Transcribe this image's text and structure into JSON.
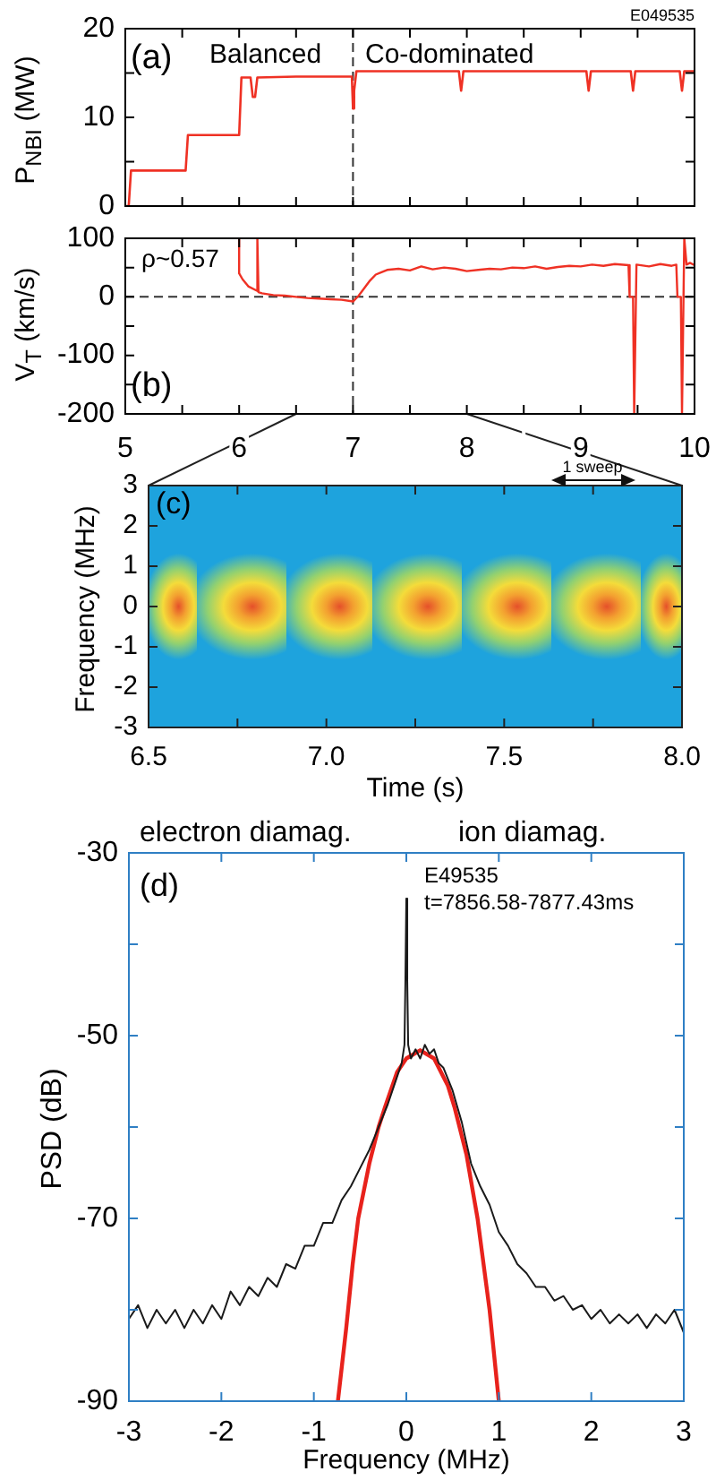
{
  "chart_data": [
    {
      "type": "line",
      "ylabel": "P$_{NBI}$ (MW)",
      "annotations": [
        "E049535",
        "(a)",
        "Balanced",
        "Co-dominated"
      ],
      "xlim": [
        5,
        10
      ],
      "xticks": [
        5,
        {
          "value": 5.5,
          "label": null
        },
        6,
        {
          "value": 6.5,
          "label": null
        },
        7,
        {
          "value": 7.5,
          "label": null
        },
        8,
        {
          "value": 8.5,
          "label": null
        },
        9,
        {
          "value": 9.5,
          "label": null
        },
        10
      ],
      "ylim": [
        0,
        20
      ],
      "yticks": [
        0,
        {
          "value": 5,
          "label": null
        },
        10,
        {
          "value": 15,
          "label": null
        },
        20
      ],
      "tick_labels": "y",
      "marker": "none",
      "ref_lines": [
        {
          "axis": "x",
          "value": 7,
          "line_style": "dashed",
          "color": "#333333"
        }
      ],
      "series": [
        {
          "color": "#ef3124",
          "x": [
            5.0,
            5.03,
            5.05,
            5.53,
            5.55,
            6.0,
            6.02,
            6.1,
            6.12,
            6.14,
            6.16,
            6.5,
            6.99,
            7.0,
            7.01,
            7.03,
            7.5,
            7.93,
            7.95,
            7.97,
            8.5,
            9.05,
            9.07,
            9.09,
            9.44,
            9.46,
            9.48,
            9.87,
            9.89,
            9.91,
            10.0
          ],
          "values": [
            0,
            0,
            4,
            4,
            8,
            8,
            14.5,
            14.5,
            12.3,
            12.3,
            14.5,
            14.6,
            14.6,
            11,
            13,
            15.2,
            15.2,
            15.2,
            13,
            15.2,
            15.2,
            15.2,
            13,
            15.2,
            15.2,
            13,
            15.2,
            15.2,
            13,
            15.2,
            15.2
          ]
        }
      ]
    },
    {
      "type": "line",
      "ylabel": "V$_{T}$ (km/s)",
      "annotations": [
        "ρ~0.57",
        "(b)"
      ],
      "xlim": [
        5,
        10
      ],
      "xticks": [
        5,
        {
          "value": 5.5,
          "label": null
        },
        6,
        {
          "value": 6.5,
          "label": null
        },
        7,
        {
          "value": 7.5,
          "label": null
        },
        8,
        {
          "value": 8.5,
          "label": null
        },
        9,
        {
          "value": 9.5,
          "label": null
        },
        10
      ],
      "ylim": [
        -200,
        100
      ],
      "yticks": [
        -200,
        {
          "value": -150,
          "label": null
        },
        -100,
        {
          "value": -50,
          "label": null
        },
        0,
        {
          "value": 50,
          "label": null
        },
        100
      ],
      "marker": "none",
      "ref_lines": [
        {
          "axis": "x",
          "value": 7,
          "line_style": "dashed",
          "color": "#333333"
        },
        {
          "axis": "y",
          "value": 0,
          "line_style": "dashed",
          "color": "#333333"
        }
      ],
      "series": [
        {
          "color": "#ef3124",
          "x": [
            6.0,
            6.0,
            6.03,
            6.08,
            6.14,
            6.16,
            6.16,
            6.17,
            6.2,
            6.3,
            6.4,
            6.5,
            6.6,
            6.7,
            6.8,
            6.9,
            7.0,
            7.05,
            7.1,
            7.15,
            7.2,
            7.25,
            7.3,
            7.4,
            7.5,
            7.6,
            7.7,
            7.8,
            7.9,
            8.0,
            8.1,
            8.2,
            8.3,
            8.4,
            8.5,
            8.6,
            8.7,
            8.8,
            8.9,
            9.0,
            9.1,
            9.2,
            9.3,
            9.42,
            9.43,
            9.46,
            9.47,
            9.48,
            9.49,
            9.6,
            9.7,
            9.8,
            9.84,
            9.85,
            9.88,
            9.89,
            9.9,
            9.91,
            9.92,
            9.93,
            9.96,
            10.0
          ],
          "values": [
            100,
            40,
            30,
            18,
            12,
            10,
            100,
            8,
            6,
            3,
            2,
            0,
            -2,
            -3,
            -4,
            -5,
            -8,
            2,
            15,
            28,
            38,
            42,
            46,
            48,
            45,
            52,
            47,
            50,
            48,
            44,
            46,
            48,
            47,
            50,
            49,
            52,
            48,
            51,
            53,
            52,
            55,
            53,
            56,
            54,
            0,
            0,
            -200,
            -200,
            55,
            52,
            56,
            53,
            55,
            0,
            0,
            -200,
            -200,
            100,
            100,
            55,
            58,
            54
          ]
        }
      ]
    },
    {
      "type": "heatmap",
      "xlabel": "Time (s)",
      "ylabel": "Frequency (MHz)",
      "annotations": [
        "(c)",
        "1 sweep"
      ],
      "xlim": [
        6.5,
        8
      ],
      "xticks": [
        6.5,
        {
          "value": 6.75,
          "label": null
        },
        {
          "value": 7,
          "label": "7.0"
        },
        {
          "value": 7.25,
          "label": null
        },
        7.5,
        {
          "value": 7.75,
          "label": null
        },
        {
          "value": 8,
          "label": "8.0"
        }
      ],
      "ylim": [
        -3,
        3
      ],
      "yticks": [
        -3,
        -2,
        -1,
        0,
        1,
        2,
        3
      ]
    },
    {
      "type": "line",
      "xlabel": "Frequency (MHz)",
      "ylabel": "PSD (dB)",
      "annotations": [
        "electron diamag.",
        "ion diamag.",
        "(d)",
        "E49535",
        "t=7856.58-7877.43ms"
      ],
      "xlim": [
        -3,
        3
      ],
      "xticks": [
        -3,
        -2,
        -1,
        0,
        1,
        2,
        3
      ],
      "ylim": [
        -90,
        -30
      ],
      "yticks": [
        -90,
        {
          "value": -80,
          "label": null
        },
        -70,
        {
          "value": -60,
          "label": null
        },
        -50,
        {
          "value": -40,
          "label": null
        },
        -30
      ],
      "marker": "none",
      "series": [
        {
          "color": "#1a1a1a",
          "x": [
            -3.0,
            -2.9,
            -2.8,
            -2.7,
            -2.6,
            -2.5,
            -2.4,
            -2.3,
            -2.2,
            -2.1,
            -2.0,
            -1.9,
            -1.8,
            -1.7,
            -1.6,
            -1.5,
            -1.4,
            -1.3,
            -1.2,
            -1.1,
            -1.0,
            -0.9,
            -0.8,
            -0.7,
            -0.6,
            -0.5,
            -0.4,
            -0.3,
            -0.2,
            -0.1,
            -0.05,
            -0.02,
            -0.01,
            0,
            0.01,
            0.02,
            0.05,
            0.1,
            0.15,
            0.2,
            0.25,
            0.3,
            0.35,
            0.4,
            0.5,
            0.6,
            0.7,
            0.8,
            0.9,
            1.0,
            1.1,
            1.2,
            1.3,
            1.4,
            1.5,
            1.6,
            1.7,
            1.8,
            1.9,
            2.0,
            2.1,
            2.2,
            2.3,
            2.4,
            2.5,
            2.6,
            2.7,
            2.8,
            2.9,
            3.0
          ],
          "values": [
            -81,
            -79.5,
            -82,
            -80,
            -81.5,
            -80,
            -82,
            -80,
            -81.5,
            -79.5,
            -81,
            -78,
            -79.5,
            -77.5,
            -78.5,
            -76.5,
            -77.5,
            -75,
            -75.5,
            -73,
            -73,
            -70.5,
            -70.5,
            -68,
            -66.5,
            -64.5,
            -62.5,
            -60,
            -57.5,
            -54.5,
            -53,
            -51,
            -44,
            -35,
            -44,
            -51,
            -52.5,
            -51.5,
            -52.5,
            -51,
            -52,
            -51.5,
            -53,
            -53.5,
            -56,
            -59.5,
            -64,
            -66.5,
            -68.5,
            -71.5,
            -73,
            -75,
            -76,
            -77.5,
            -77.5,
            -79,
            -78.5,
            -80,
            -79.5,
            -81,
            -80,
            -81.5,
            -80.5,
            -81.5,
            -80.5,
            -82,
            -80.5,
            -81.5,
            -80,
            -82.5
          ]
        },
        {
          "color": "#e8221c",
          "x": [
            -0.74,
            -0.65,
            -0.58,
            -0.52,
            -0.4,
            -0.3,
            -0.23,
            -0.1,
            0,
            0.15,
            0.3,
            0.45,
            0.52,
            0.65,
            0.77,
            0.9,
            1.0
          ],
          "values": [
            -90,
            -82,
            -75,
            -70,
            -64,
            -60,
            -57.8,
            -54,
            -52.5,
            -51.6,
            -52.5,
            -55.5,
            -57.8,
            -63,
            -70,
            -80,
            -90
          ]
        }
      ]
    }
  ]
}
